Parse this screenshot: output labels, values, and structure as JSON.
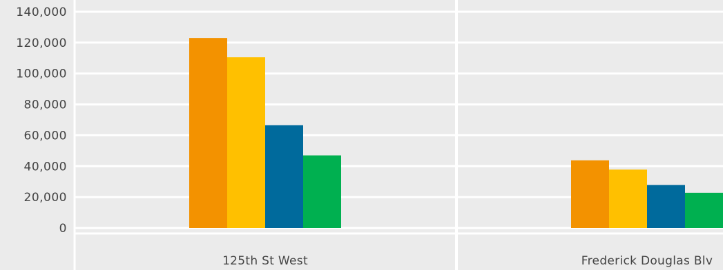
{
  "chart_data": {
    "type": "bar",
    "title": "",
    "xlabel": "",
    "ylabel": "",
    "categories": [
      "125th St West",
      "Frederick Douglas Blv"
    ],
    "series": [
      {
        "values": [
          123000,
          43800
        ],
        "color": "#f39200"
      },
      {
        "values": [
          110500,
          37800
        ],
        "color": "#ffc000"
      },
      {
        "values": [
          66500,
          27800
        ],
        "color": "#006a9c"
      },
      {
        "values": [
          47000,
          22800
        ],
        "color": "#00b050"
      }
    ],
    "ylim": [
      0,
      140000
    ],
    "y_ticks": [
      0,
      20000,
      40000,
      60000,
      80000,
      100000,
      120000,
      140000
    ],
    "y_tick_labels": [
      "0",
      "20,000",
      "40,000",
      "60,000",
      "80,000",
      "100,000",
      "120,000",
      "140,000"
    ],
    "grid": true,
    "legend": "none"
  }
}
